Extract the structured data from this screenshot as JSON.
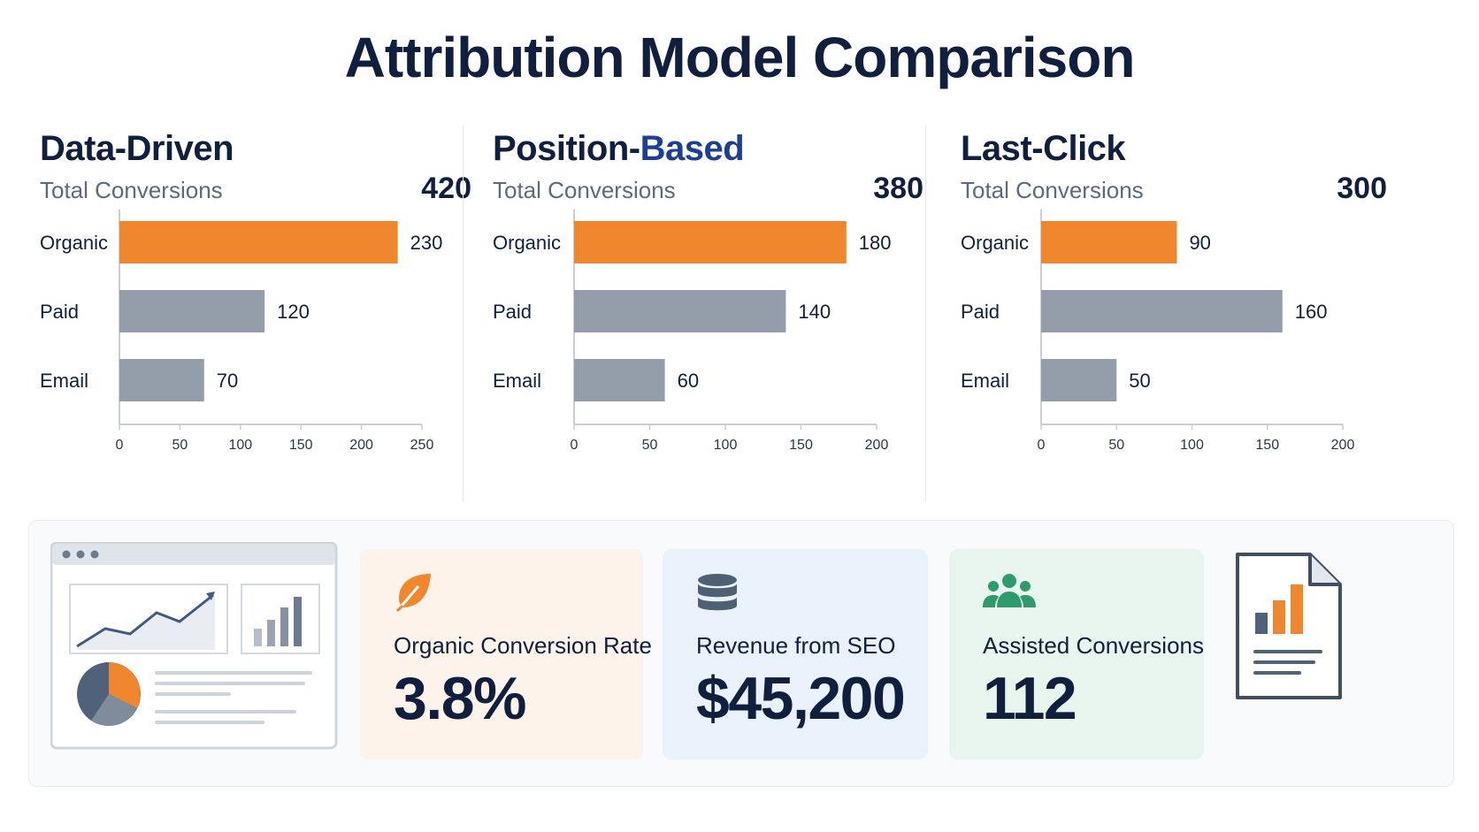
{
  "title": "Attribution Model Comparison",
  "colors": {
    "organic": "#f0872e",
    "paid": "#949eab",
    "email": "#949eab",
    "axis": "#c9ced6",
    "navy": "#0f1f3d",
    "accent_blue": "#1c3f94"
  },
  "panels": [
    {
      "title_part1": "Data-Driven",
      "title_part2": "",
      "total_label": "Total Conversions",
      "total_value": "420"
    },
    {
      "title_part1": "Position-",
      "title_part2": "Based",
      "total_label": "Total Conversions",
      "total_value": "380"
    },
    {
      "title_part1": "Last-Click",
      "title_part2": "",
      "total_label": "Total Conversions",
      "total_value": "300"
    }
  ],
  "chart_data": [
    {
      "type": "bar",
      "orientation": "horizontal",
      "categories": [
        "Organic",
        "Paid",
        "Email"
      ],
      "values": [
        230,
        120,
        70
      ],
      "xlim": [
        0,
        250
      ],
      "xticks": [
        0,
        50,
        100,
        150,
        200,
        250
      ],
      "grid": false
    },
    {
      "type": "bar",
      "orientation": "horizontal",
      "categories": [
        "Organic",
        "Paid",
        "Email"
      ],
      "values": [
        180,
        140,
        60
      ],
      "xlim": [
        0,
        200
      ],
      "xticks": [
        0,
        50,
        100,
        150,
        200
      ],
      "grid": false
    },
    {
      "type": "bar",
      "orientation": "horizontal",
      "categories": [
        "Organic",
        "Paid",
        "Email"
      ],
      "values": [
        90,
        160,
        50
      ],
      "xlim": [
        0,
        200
      ],
      "xticks": [
        0,
        50,
        100,
        150,
        200
      ],
      "grid": false
    }
  ],
  "kpis": [
    {
      "label": "Organic Conversion Rate",
      "value": "3.8%",
      "icon": "leaf-icon",
      "bg": "#fdf3ea",
      "icon_color": "#f0872e"
    },
    {
      "label": "Revenue from SEO",
      "value": "$45,200",
      "icon": "database-icon",
      "bg": "#e9f2fb",
      "icon_color": "#4f5f74"
    },
    {
      "label": "Assisted Conversions",
      "value": "112",
      "icon": "users-icon",
      "bg": "#e8f5ee",
      "icon_color": "#2f9b6b"
    }
  ],
  "illustrations": {
    "dashboard": "dashboard-illustration-icon",
    "report": "report-document-icon"
  }
}
